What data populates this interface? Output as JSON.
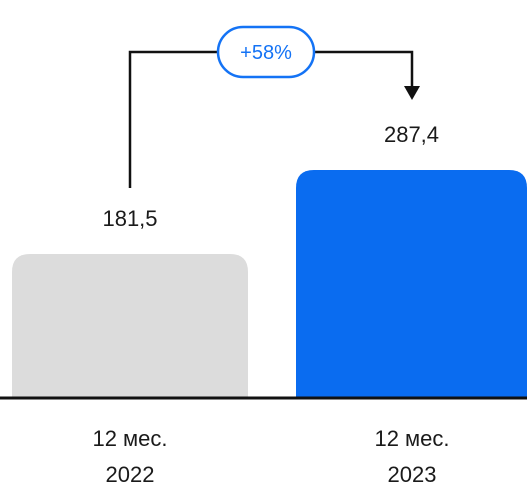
{
  "chart_data": {
    "type": "bar",
    "categories": [
      [
        "12 мес.",
        "2022"
      ],
      [
        "12 мес.",
        "2023"
      ]
    ],
    "values": [
      181.5,
      287.4
    ],
    "value_labels": [
      "181,5",
      "287,4"
    ],
    "colors": [
      "#dcdcdc",
      "#0a6cf0"
    ],
    "ylim": [
      0,
      287.4
    ],
    "grid": false,
    "annotation": {
      "label": "+58%",
      "from_category": 0,
      "to_category": 1,
      "color": "#1473f5"
    }
  }
}
